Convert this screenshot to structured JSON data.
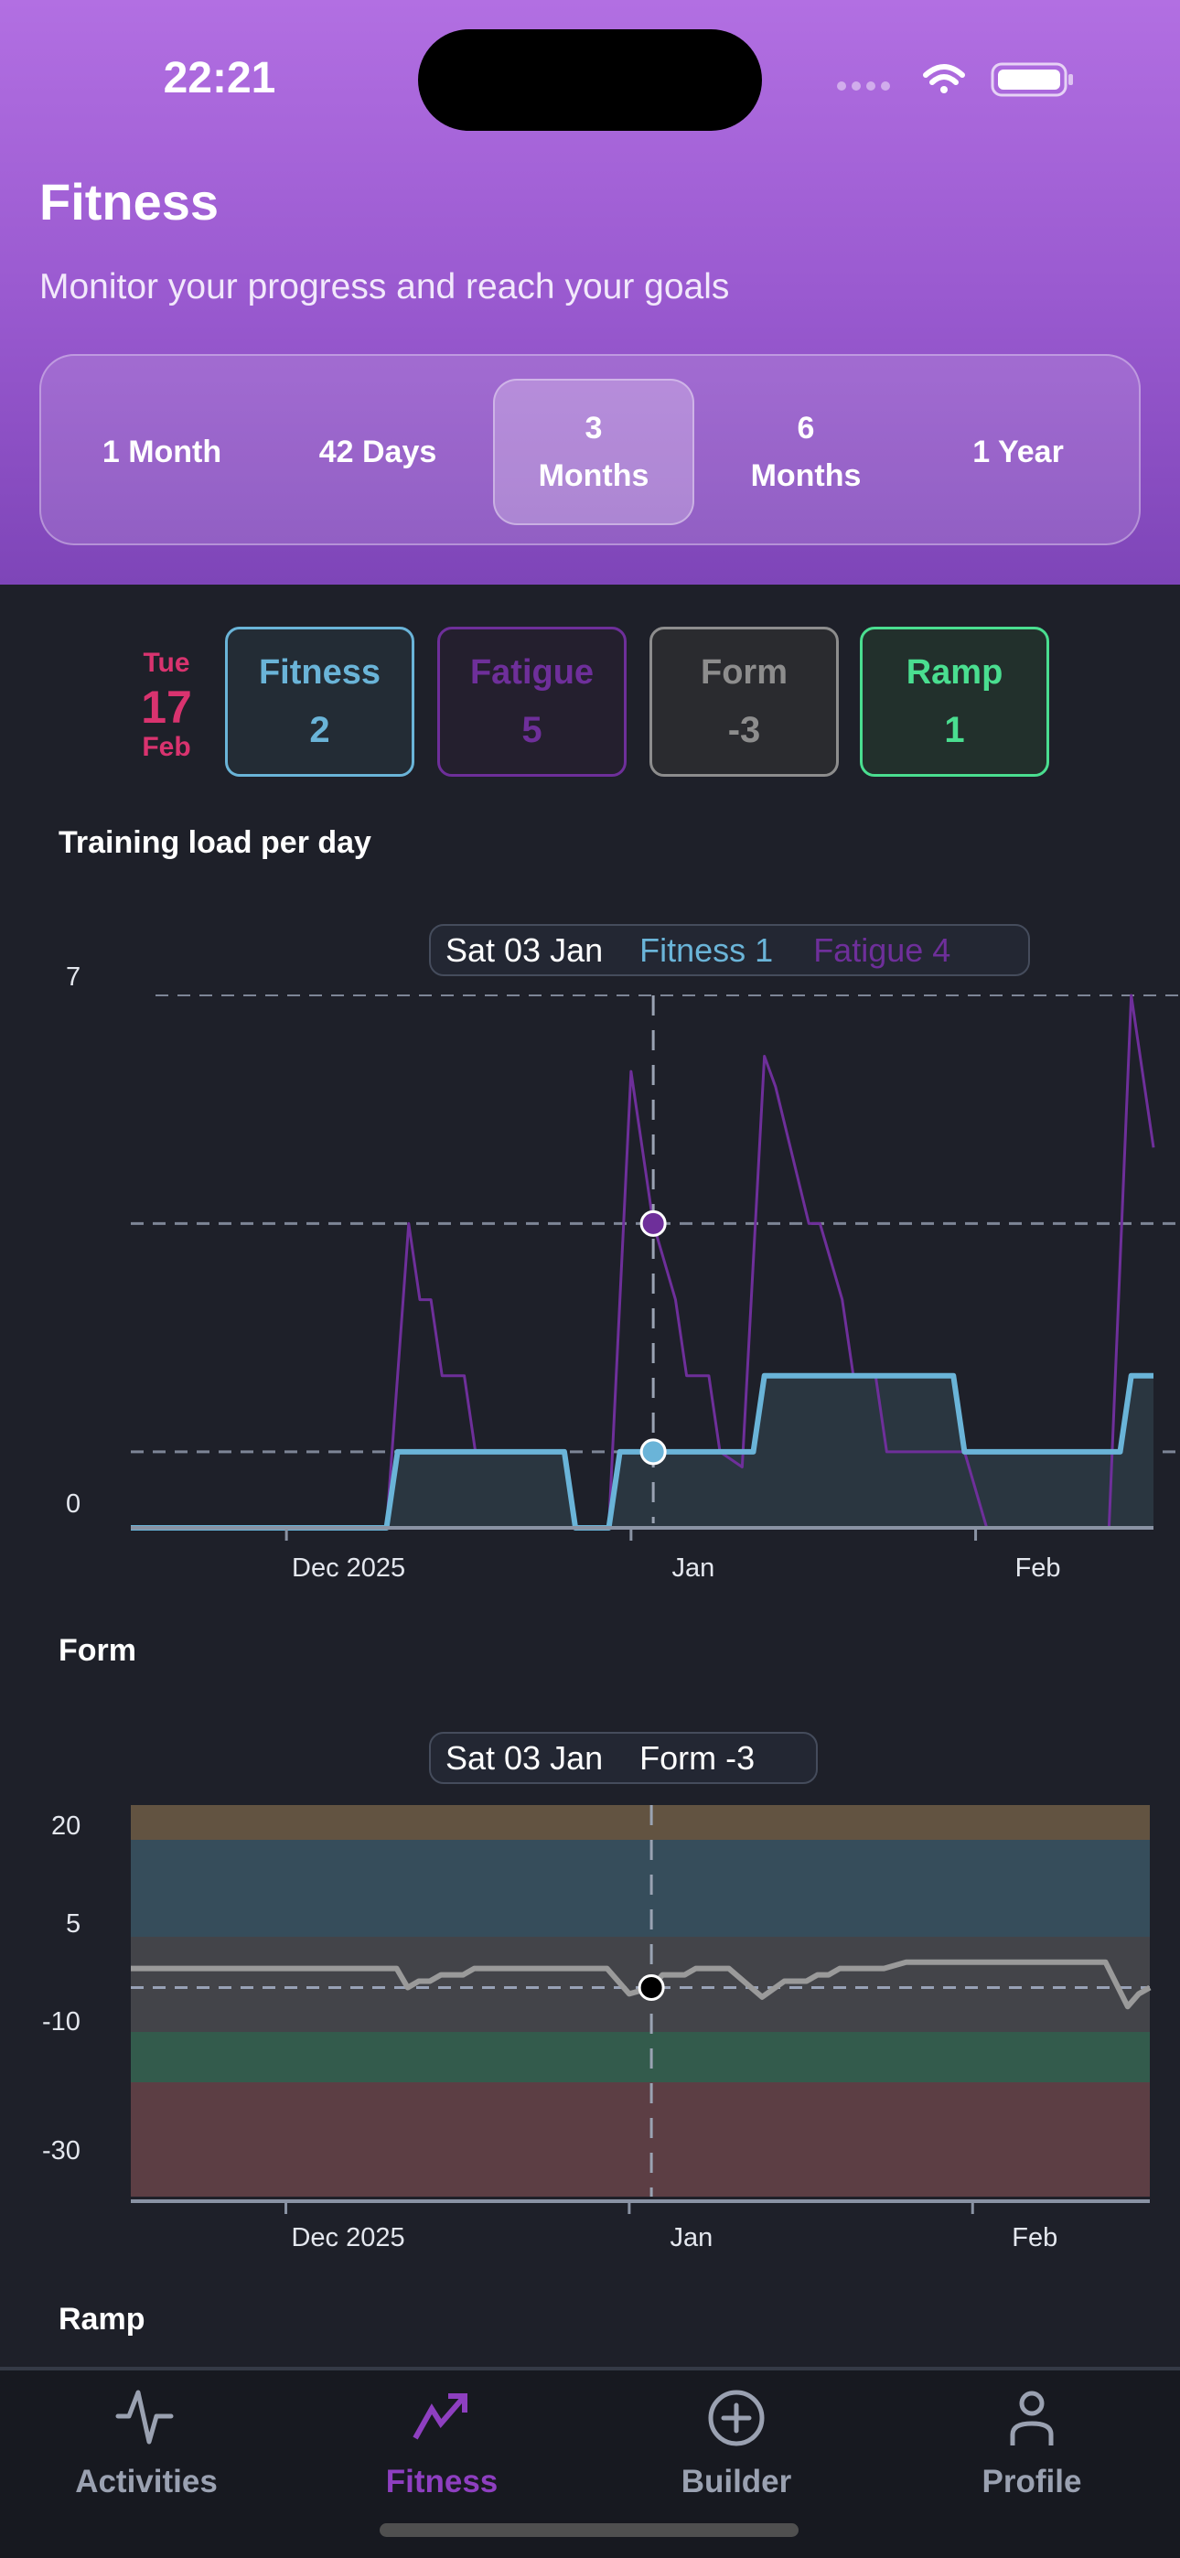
{
  "status_bar": {
    "time": "22:21",
    "icons": [
      "cellular-dots-icon",
      "wifi-icon",
      "battery-icon"
    ]
  },
  "header": {
    "title": "Fitness",
    "subtitle": "Monitor your progress and reach your goals"
  },
  "segments": [
    {
      "label": "1 Month",
      "selected": false
    },
    {
      "label": "42 Days",
      "selected": false
    },
    {
      "label": "3\nMonths",
      "selected": true
    },
    {
      "label": "6\nMonths",
      "selected": false
    },
    {
      "label": "1 Year",
      "selected": false
    }
  ],
  "summary": {
    "date": {
      "weekday": "Tue",
      "day": "17",
      "month": "Feb"
    },
    "cards": [
      {
        "label": "Fitness",
        "value": "2",
        "color": "#6ab4d8"
      },
      {
        "label": "Fatigue",
        "value": "5",
        "color": "#6e2f9a"
      },
      {
        "label": "Form",
        "value": "-3",
        "color": "#8d8d8d"
      },
      {
        "label": "Ramp",
        "value": "1",
        "color": "#4ade90"
      }
    ]
  },
  "training_section": {
    "title": "Training load per day",
    "tooltip": {
      "date": "Sat 03 Jan",
      "fitness": "Fitness 1",
      "fatigue": "Fatigue 4"
    }
  },
  "form_section": {
    "title": "Form",
    "tooltip": {
      "date": "Sat 03 Jan",
      "form": "Form -3"
    }
  },
  "ramp_section": {
    "title": "Ramp"
  },
  "chart_data": [
    {
      "type": "line",
      "title": "Training load per day",
      "xlim": [
        "2025-11-17",
        "2026-02-17"
      ],
      "ylim": [
        0,
        7
      ],
      "yticks": [
        0,
        7
      ],
      "xticks": [
        {
          "date": "2025-12-01",
          "label": "Dec 2025"
        },
        {
          "date": "2026-01-01",
          "label": "Jan"
        },
        {
          "date": "2026-02-01",
          "label": "Feb"
        }
      ],
      "grid": "dashed horizontal",
      "crosshair": {
        "date": "2026-01-03",
        "fitness": 1,
        "fatigue": 4
      },
      "series": [
        {
          "name": "Fitness",
          "color": "#6ab4d8",
          "fill": true,
          "points": [
            [
              "2025-11-17",
              0
            ],
            [
              "2025-12-10",
              0
            ],
            [
              "2025-12-11",
              1
            ],
            [
              "2025-12-26",
              1
            ],
            [
              "2025-12-27",
              0
            ],
            [
              "2025-12-30",
              0
            ],
            [
              "2025-12-31",
              1
            ],
            [
              "2026-01-12",
              1
            ],
            [
              "2026-01-13",
              2
            ],
            [
              "2026-01-30",
              2
            ],
            [
              "2026-01-31",
              1
            ],
            [
              "2026-02-14",
              1
            ],
            [
              "2026-02-15",
              2
            ],
            [
              "2026-02-17",
              2
            ]
          ]
        },
        {
          "name": "Fatigue",
          "color": "#6e2f9a",
          "fill": false,
          "points": [
            [
              "2025-11-17",
              0
            ],
            [
              "2025-12-10",
              0
            ],
            [
              "2025-12-12",
              4
            ],
            [
              "2025-12-13",
              3
            ],
            [
              "2025-12-14",
              3
            ],
            [
              "2025-12-15",
              2
            ],
            [
              "2025-12-17",
              2
            ],
            [
              "2025-12-18",
              1
            ],
            [
              "2025-12-26",
              1
            ],
            [
              "2025-12-27",
              0
            ],
            [
              "2025-12-30",
              0
            ],
            [
              "2026-01-01",
              6
            ],
            [
              "2026-01-03",
              4
            ],
            [
              "2026-01-05",
              3
            ],
            [
              "2026-01-06",
              2
            ],
            [
              "2026-01-08",
              2
            ],
            [
              "2026-01-09",
              1
            ],
            [
              "2026-01-11",
              0.8
            ],
            [
              "2026-01-13",
              6.2
            ],
            [
              "2026-01-14",
              5.8
            ],
            [
              "2026-01-17",
              4
            ],
            [
              "2026-01-18",
              4
            ],
            [
              "2026-01-20",
              3
            ],
            [
              "2026-01-21",
              2
            ],
            [
              "2026-01-23",
              2
            ],
            [
              "2026-01-24",
              1
            ],
            [
              "2026-01-31",
              1
            ],
            [
              "2026-02-02",
              0
            ],
            [
              "2026-02-13",
              0
            ],
            [
              "2026-02-15",
              7
            ],
            [
              "2026-02-16",
              6
            ],
            [
              "2026-02-17",
              5
            ]
          ]
        }
      ]
    },
    {
      "type": "line",
      "title": "Form",
      "xlim": [
        "2025-11-17",
        "2026-02-17"
      ],
      "yticks": [
        20,
        5,
        -10,
        -30
      ],
      "xticks": [
        {
          "date": "2025-12-01",
          "label": "Dec 2025"
        },
        {
          "date": "2026-01-01",
          "label": "Jan"
        },
        {
          "date": "2026-02-01",
          "label": "Feb"
        }
      ],
      "crosshair": {
        "date": "2026-01-03",
        "form": -3
      },
      "bands": [
        {
          "from": 20,
          "to": 25,
          "color": "#625341"
        },
        {
          "from": 5,
          "to": 20,
          "color": "#364d5b"
        },
        {
          "from": -10,
          "to": 5,
          "color": "#434449"
        },
        {
          "from": -30,
          "to": -10,
          "color": "#335b4c"
        },
        {
          "from": -50,
          "to": -30,
          "color": "#5c3e44"
        }
      ],
      "series": [
        {
          "name": "Form",
          "color": "#9a9a9a",
          "points": [
            [
              "2025-11-17",
              0
            ],
            [
              "2025-12-11",
              0
            ],
            [
              "2025-12-12",
              -3
            ],
            [
              "2025-12-13",
              -2
            ],
            [
              "2025-12-14",
              -2
            ],
            [
              "2025-12-15",
              -1
            ],
            [
              "2025-12-17",
              -1
            ],
            [
              "2025-12-18",
              0
            ],
            [
              "2025-12-30",
              0
            ],
            [
              "2026-01-01",
              -4
            ],
            [
              "2026-01-03",
              -3
            ],
            [
              "2026-01-04",
              -1
            ],
            [
              "2026-01-06",
              -1
            ],
            [
              "2026-01-07",
              0
            ],
            [
              "2026-01-09",
              0
            ],
            [
              "2026-01-10",
              0
            ],
            [
              "2026-01-13",
              -4.5
            ],
            [
              "2026-01-15",
              -2
            ],
            [
              "2026-01-17",
              -2
            ],
            [
              "2026-01-18",
              -1
            ],
            [
              "2026-01-19",
              -1
            ],
            [
              "2026-01-20",
              0
            ],
            [
              "2026-01-24",
              0
            ],
            [
              "2026-01-26",
              1
            ],
            [
              "2026-02-13",
              1
            ],
            [
              "2026-02-15",
              -6
            ],
            [
              "2026-02-16",
              -4
            ],
            [
              "2026-02-17",
              -3
            ]
          ]
        }
      ]
    }
  ],
  "nav": [
    {
      "label": "Activities",
      "icon": "activity-pulse-icon",
      "active": false
    },
    {
      "label": "Fitness",
      "icon": "trending-up-icon",
      "active": true
    },
    {
      "label": "Builder",
      "icon": "plus-circle-icon",
      "active": false
    },
    {
      "label": "Profile",
      "icon": "person-icon",
      "active": false
    }
  ],
  "colors": {
    "accent": "#8e3fc0",
    "inactive": "#9aa1b1",
    "date": "#d9336f"
  }
}
